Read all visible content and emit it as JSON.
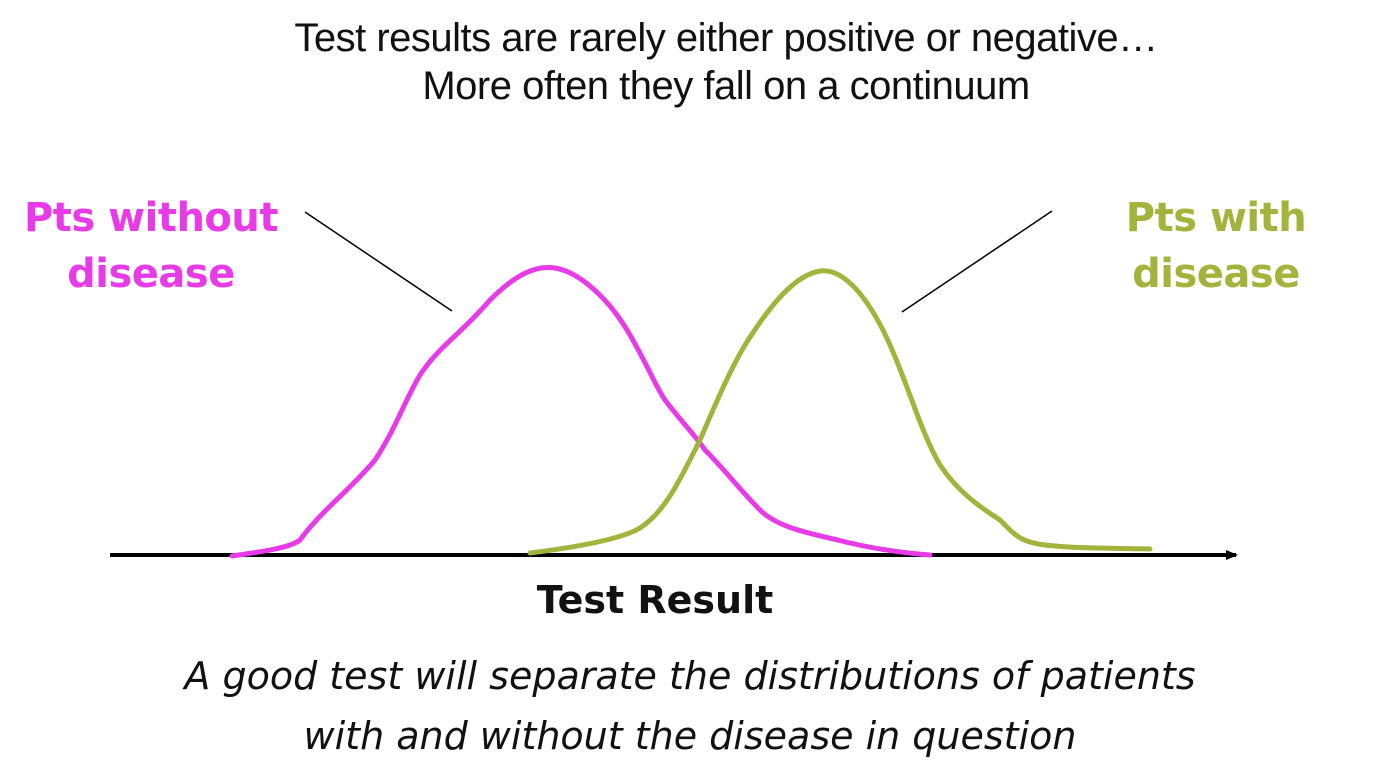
{
  "title": {
    "line1": "Test results are rarely either positive or negative…",
    "line2": "More often they fall on a continuum"
  },
  "labels": {
    "without_disease": {
      "line1": "Pts without",
      "line2": "disease"
    },
    "with_disease": {
      "line1": "Pts with",
      "line2": "disease"
    }
  },
  "axis": {
    "label": "Test Result"
  },
  "caption": {
    "line1": "A good test will separate the distributions of patients",
    "line2": "with and without the disease in question"
  },
  "colors": {
    "without_disease": "#e83be8",
    "with_disease": "#a3b43c",
    "axis": "#000000",
    "text": "#111111"
  }
}
